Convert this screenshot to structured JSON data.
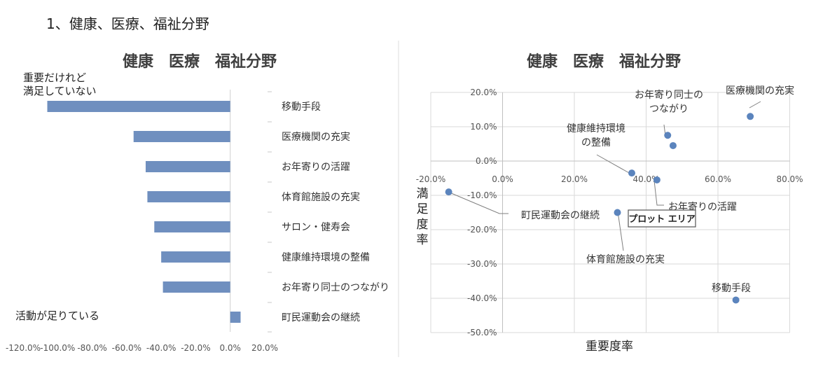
{
  "heading": "1、健康、医療、福祉分野",
  "chart_data": [
    {
      "type": "bar",
      "orientation": "horizontal",
      "title": "健康　医療　福祉分野",
      "categories": [
        "移動手段",
        "医療機関の充実",
        "お年寄りの活躍",
        "体育館施設の充実",
        "サロン・健寿会",
        "健康維持環境の整備",
        "お年寄り同士のつながり",
        "町民運動会の継続"
      ],
      "values": [
        -106,
        -56,
        -49,
        -48,
        -44,
        -40,
        -39,
        6
      ],
      "xlim": [
        -120,
        20
      ],
      "xticks": [
        "-120.0%",
        "-100.0%",
        "-80.0%",
        "-60.0%",
        "-40.0%",
        "-20.0%",
        "0.0%",
        "20.0%"
      ],
      "annotations": [
        "重要だけれど",
        "満足していない",
        "活動が足りている"
      ],
      "bar_color": "#6f8fbf"
    },
    {
      "type": "scatter",
      "title": "健康　医療　福祉分野",
      "xlabel": "重要度率",
      "ylabel": "満足度率",
      "xlim": [
        -20,
        80
      ],
      "ylim": [
        -50,
        20
      ],
      "xticks": [
        "-20.0%",
        "0.0%",
        "20.0%",
        "40.0%",
        "60.0%",
        "80.0%"
      ],
      "yticks": [
        "20.0%",
        "10.0%",
        "0.0%",
        "-10.0%",
        "-20.0%",
        "-30.0%",
        "-40.0%",
        "-50.0%"
      ],
      "point_color": "#5b84bd",
      "points": [
        {
          "label": "医療機関の充実",
          "x": 69,
          "y": 13
        },
        {
          "label": "お年寄り同士のつながり",
          "x": 46,
          "y": 7.5
        },
        {
          "label": "",
          "x": 47.5,
          "y": 4.5
        },
        {
          "label": "健康維持環境の整備",
          "x": 36,
          "y": -3.5
        },
        {
          "label": "お年寄りの活躍",
          "x": 43,
          "y": -5.5
        },
        {
          "label": "町民運動会の継続",
          "x": -15,
          "y": -9
        },
        {
          "label": "体育館施設の充実",
          "x": 32,
          "y": -15
        },
        {
          "label": "移動手段",
          "x": 65,
          "y": -40.5
        }
      ],
      "tooltip": "プロット エリア"
    }
  ]
}
